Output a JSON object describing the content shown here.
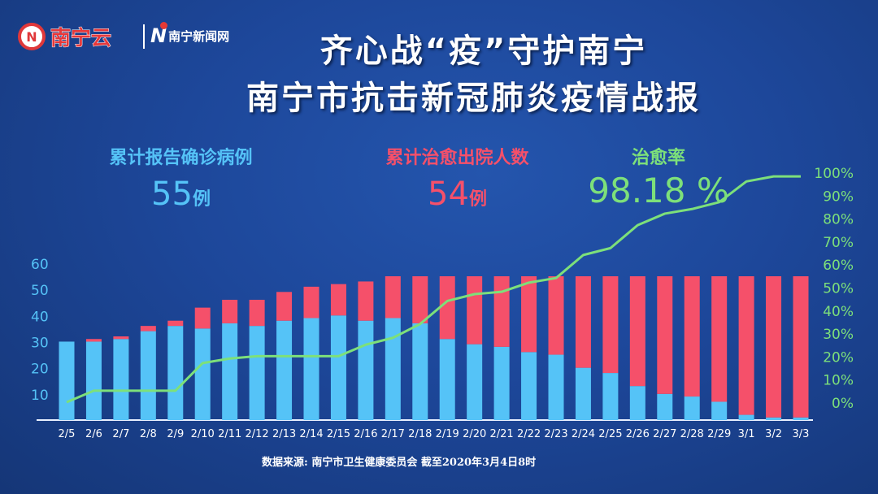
{
  "logos": {
    "nanning_cloud": "南宁云",
    "nanning_news": "南宁新闻网",
    "nanning_cloud_mark": "N",
    "nanning_news_mark": "N"
  },
  "title": {
    "line1": "齐心战“疫”守护南宁",
    "line2": "南宁市抗击新冠肺炎疫情战报"
  },
  "stats": {
    "confirmed": {
      "label": "累计报告确诊病例",
      "value": "55",
      "unit": "例",
      "color": "#55c3f7"
    },
    "cured": {
      "label": "累计治愈出院人数",
      "value": "54",
      "unit": "例",
      "color": "#f5506a"
    },
    "rate": {
      "label": "治愈率",
      "value": "98.18 %",
      "color": "#7de07a"
    }
  },
  "source": "数据来源: 南宁市卫生健康委员会   截至2020年3月4日8时",
  "chart_data": {
    "type": "bar",
    "stacked": true,
    "categories": [
      "2/5",
      "2/6",
      "2/7",
      "2/8",
      "2/9",
      "2/10",
      "2/11",
      "2/12",
      "2/13",
      "2/14",
      "2/15",
      "2/16",
      "2/17",
      "2/18",
      "2/19",
      "2/20",
      "2/21",
      "2/22",
      "2/23",
      "2/24",
      "2/25",
      "2/26",
      "2/27",
      "2/28",
      "2/29",
      "3/1",
      "3/2",
      "3/3"
    ],
    "series": [
      {
        "color": "#55c3f7",
        "values": [
          30,
          30,
          31,
          34,
          36,
          35,
          37,
          36,
          38,
          39,
          40,
          38,
          39,
          37,
          31,
          29,
          28,
          26,
          25,
          20,
          18,
          13,
          10,
          9,
          7,
          2,
          1,
          1
        ]
      },
      {
        "color": "#f5506a",
        "values": [
          0,
          1,
          1,
          2,
          2,
          8,
          9,
          10,
          11,
          12,
          12,
          15,
          16,
          18,
          24,
          26,
          27,
          29,
          30,
          35,
          37,
          42,
          45,
          46,
          48,
          53,
          54,
          54
        ]
      }
    ],
    "line": {
      "color": "#7de07a",
      "axis": "right",
      "values": [
        0,
        5,
        5,
        5,
        5,
        17,
        19,
        20,
        20,
        20,
        20,
        25,
        28,
        34,
        44,
        47,
        48,
        52,
        54,
        64,
        67,
        77,
        82,
        84,
        87,
        96,
        98.18,
        98.18
      ]
    },
    "y_left": {
      "ticks": [
        "10",
        "20",
        "30",
        "40",
        "50",
        "60"
      ],
      "range": [
        0,
        60
      ]
    },
    "y_right": {
      "ticks": [
        "0%",
        "10%",
        "20%",
        "30%",
        "40%",
        "50%",
        "60%",
        "70%",
        "80%",
        "90%",
        "100%"
      ],
      "range": [
        0,
        100
      ]
    },
    "grid": false,
    "legend": "none"
  }
}
